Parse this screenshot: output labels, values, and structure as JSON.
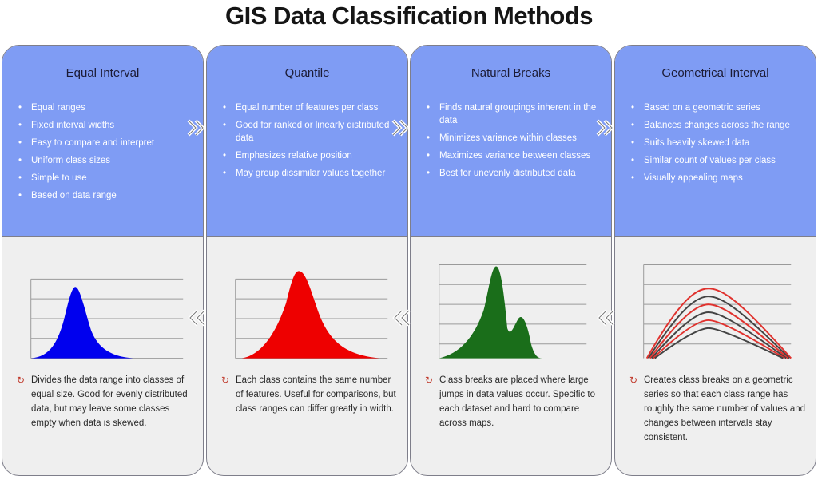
{
  "title": "GIS Data Classification Methods",
  "panels": [
    {
      "heading": "Equal Interval",
      "bullets": [
        "Equal ranges",
        "Fixed interval widths",
        "Easy to compare and interpret",
        "Uniform class sizes",
        "Simple to use",
        "Based on data range"
      ],
      "description": "Divides the data range into classes of equal size. Good for evenly distributed data, but may leave some classes empty when data is skewed.",
      "color": "#0000ee",
      "curve": "single-peak"
    },
    {
      "heading": "Quantile",
      "bullets": [
        "Equal number of features per class",
        "Good for ranked or linearly distributed data",
        "Emphasizes relative position",
        "May group dissimilar values together"
      ],
      "description": "Each class contains the same number of features. Useful for comparisons, but class ranges can differ greatly in width.",
      "color": "#ee0000",
      "curve": "single-peak"
    },
    {
      "heading": "Natural Breaks",
      "bullets": [
        "Finds natural groupings inherent in the data",
        "Minimizes variance within classes",
        "Maximizes variance between classes",
        "Best for unevenly distributed data"
      ],
      "description": "Class breaks are placed where large jumps in data values occur. Specific to each dataset and hard to compare across maps.",
      "color": "#1a6e1a",
      "curve": "double-peak"
    },
    {
      "heading": "Geometrical Interval",
      "bullets": [
        "Based on a geometric series",
        "Balances changes across the range",
        "Suits heavily skewed data",
        "Similar count of values per class",
        "Visually appealing maps"
      ],
      "description": "Creates class breaks on a geometric series so that each class range has roughly the same number of values and changes between intervals stay consistent.",
      "color": "#e0322e",
      "curve": "multi-curve"
    }
  ]
}
